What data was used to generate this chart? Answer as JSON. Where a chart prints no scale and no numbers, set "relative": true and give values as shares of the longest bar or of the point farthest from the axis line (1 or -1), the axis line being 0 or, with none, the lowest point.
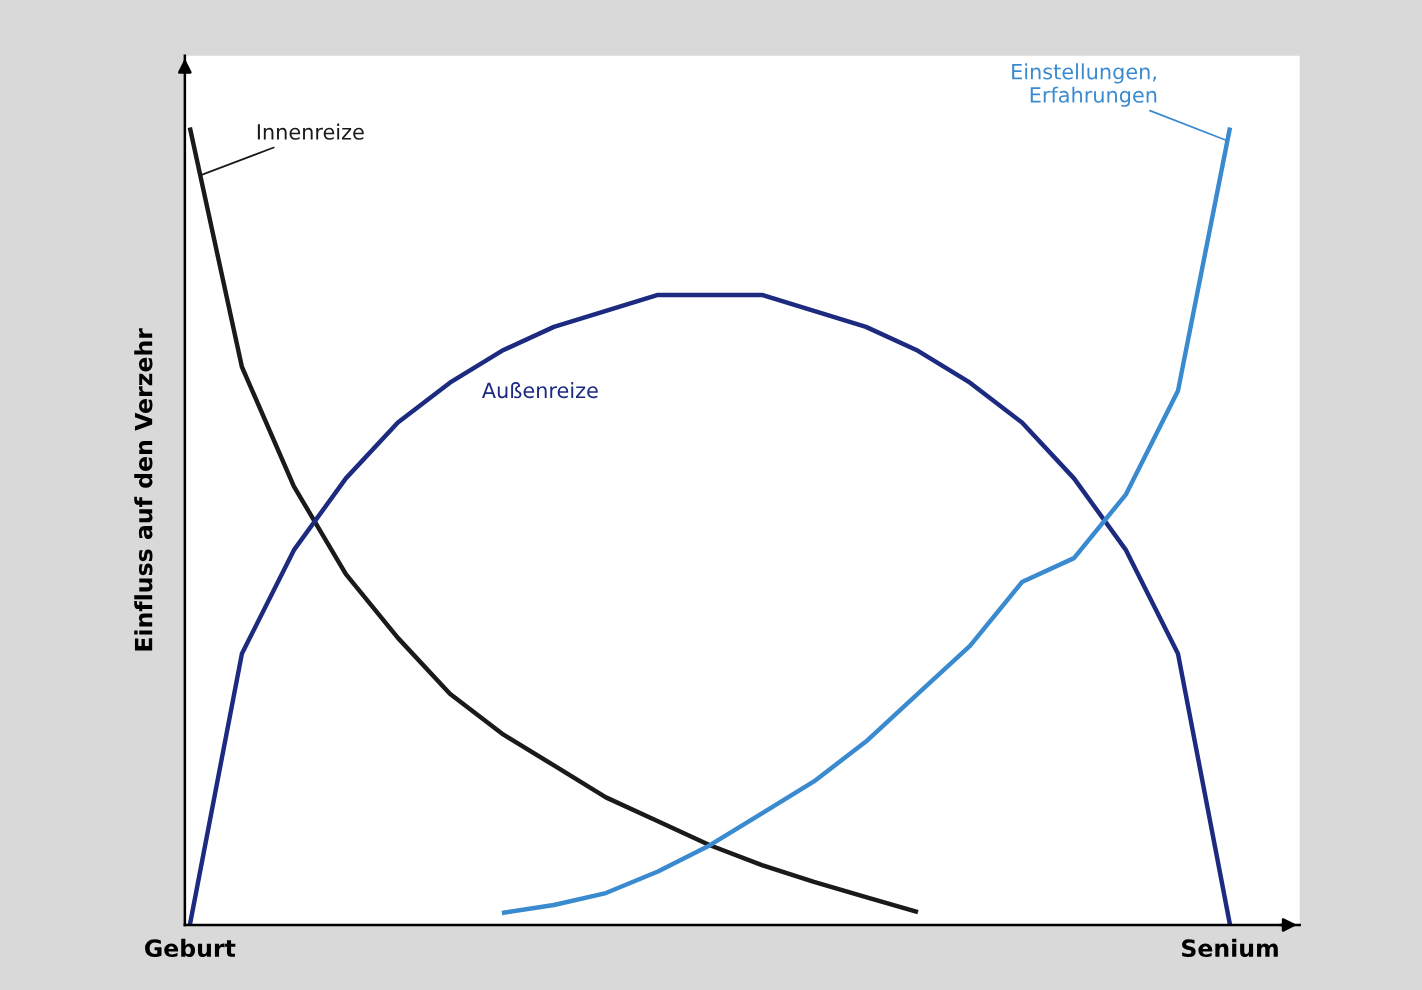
{
  "chart_data": {
    "type": "line",
    "relative": true,
    "ylabel": "Einfluss auf den Verzehr",
    "categories": [
      "Geburt",
      null,
      null,
      null,
      null,
      null,
      null,
      null,
      null,
      null,
      null,
      null,
      null,
      null,
      null,
      null,
      null,
      null,
      null,
      null,
      "Senium"
    ],
    "series": [
      {
        "name": "Innenreize",
        "color": "#1a1a1a",
        "values": [
          1.0,
          0.7,
          0.55,
          0.44,
          0.36,
          0.29,
          0.24,
          0.2,
          0.16,
          0.13,
          0.1,
          0.075,
          0.054,
          0.035,
          0.016,
          null,
          null,
          null,
          null,
          null,
          null
        ]
      },
      {
        "name": "Außenreize",
        "color": "#1c2a80",
        "values": [
          0.0,
          0.34,
          0.47,
          0.56,
          0.63,
          0.68,
          0.72,
          0.75,
          0.77,
          0.79,
          0.79,
          0.79,
          0.77,
          0.75,
          0.72,
          0.68,
          0.63,
          0.56,
          0.47,
          0.34,
          0.0
        ]
      },
      {
        "name": "Einstellungen,\nErfahrungen",
        "color": "#3a8ad0",
        "values": [
          null,
          null,
          null,
          null,
          null,
          null,
          0.015,
          0.025,
          0.04,
          0.067,
          0.1,
          0.14,
          0.18,
          0.23,
          0.29,
          0.35,
          0.43,
          0.46,
          0.54,
          0.67,
          1.0
        ]
      }
    ],
    "grid": false,
    "legend": false
  }
}
